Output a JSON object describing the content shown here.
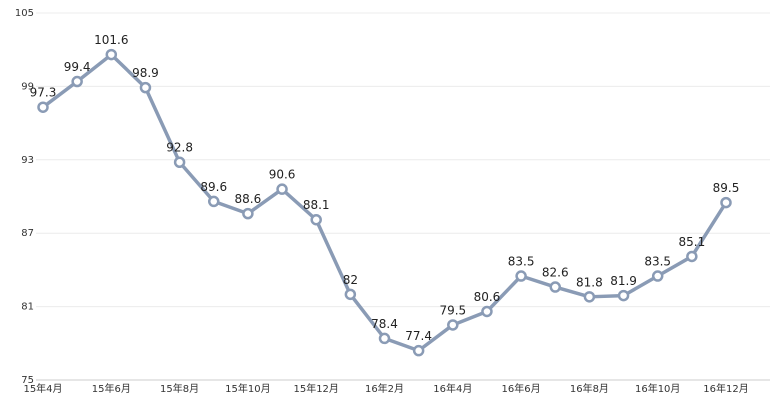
{
  "chart_data": {
    "type": "line",
    "categories": [
      "15年4月",
      null,
      "15年6月",
      null,
      "15年8月",
      null,
      "15年10月",
      null,
      "15年12月",
      null,
      "16年2月",
      null,
      "16年4月",
      null,
      "16年6月",
      null,
      "16年8月",
      null,
      "16年10月",
      null,
      "16年12月"
    ],
    "values": [
      97.3,
      99.4,
      101.6,
      98.9,
      92.8,
      89.6,
      88.6,
      90.6,
      88.1,
      82,
      78.4,
      77.4,
      79.5,
      80.6,
      83.5,
      82.6,
      81.8,
      81.9,
      83.5,
      85.1,
      89.5
    ],
    "color": "#8a9bb5",
    "ylim": [
      75,
      105
    ],
    "yticks": [
      75,
      81,
      87,
      93,
      99,
      105
    ],
    "grid": true
  }
}
